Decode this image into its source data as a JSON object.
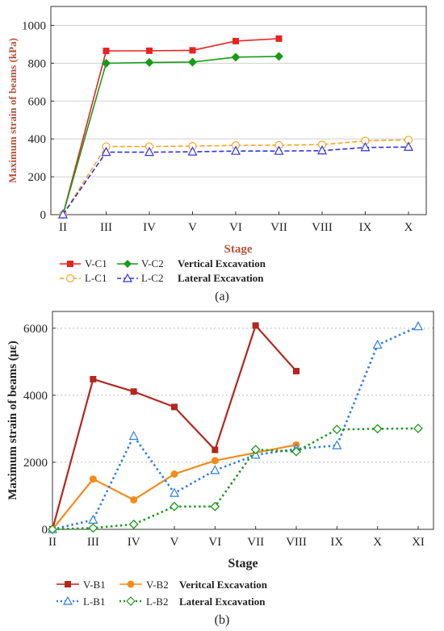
{
  "colors": {
    "red": "#e8231f",
    "green": "#1a9a1a",
    "orange": "#f5a623",
    "blue": "#3333dd",
    "darkred": "#b3261e",
    "orange2": "#f28c1b",
    "lightblue": "#2f7fe0",
    "green2": "#1f9a1f",
    "axis_title": "#b5533a"
  },
  "chart_data": [
    {
      "type": "line",
      "panel_label": "(a)",
      "ylabel": "Maximum strain of beams (kPa)",
      "xlabel": "Stage",
      "categories": [
        "II",
        "III",
        "IV",
        "V",
        "VI",
        "VII",
        "VIII",
        "IX",
        "X"
      ],
      "ylim": [
        0,
        1100
      ],
      "yticks": [
        0,
        200,
        400,
        600,
        800,
        1000
      ],
      "grid": true,
      "series": [
        {
          "name": "V-C1",
          "color": "red",
          "marker": "square-filled",
          "dash": "solid",
          "values": [
            0,
            865,
            866,
            868,
            917,
            930,
            null,
            null,
            null
          ]
        },
        {
          "name": "V-C2",
          "color": "green",
          "marker": "diamond-filled",
          "dash": "solid",
          "values": [
            0,
            800,
            804,
            806,
            832,
            836,
            null,
            null,
            null
          ]
        },
        {
          "name": "L-C1",
          "color": "orange",
          "marker": "circle-open",
          "dash": "dashed",
          "values": [
            0,
            360,
            360,
            362,
            366,
            367,
            370,
            390,
            395
          ]
        },
        {
          "name": "L-C2",
          "color": "blue",
          "marker": "triangle-open",
          "dash": "dashed",
          "values": [
            0,
            330,
            330,
            332,
            336,
            336,
            338,
            355,
            357
          ]
        }
      ],
      "legend_groups": [
        "Vertical Excavation",
        "Lateral Excavation"
      ]
    },
    {
      "type": "line",
      "panel_label": "(b)",
      "ylabel": "Maximum strain of beams (με)",
      "xlabel": "Stage",
      "categories": [
        "II",
        "III",
        "IV",
        "V",
        "VI",
        "VII",
        "VIII",
        "IX",
        "X",
        "XI"
      ],
      "ylim": [
        0,
        6500
      ],
      "yticks": [
        0,
        2000,
        4000,
        6000
      ],
      "grid": true,
      "series": [
        {
          "name": "V-B1",
          "color": "darkred",
          "marker": "square-filled",
          "dash": "solid",
          "values": [
            0,
            4480,
            4110,
            3650,
            2370,
            6080,
            4720,
            null,
            null,
            null
          ]
        },
        {
          "name": "V-B2",
          "color": "orange2",
          "marker": "circle-filled",
          "dash": "solid",
          "values": [
            0,
            1500,
            880,
            1650,
            2050,
            null,
            2520,
            null,
            null,
            null
          ]
        },
        {
          "name": "L-B1",
          "color": "lightblue",
          "marker": "triangle-open",
          "dash": "dotted",
          "values": [
            0,
            280,
            2780,
            1080,
            1760,
            2220,
            2400,
            2500,
            5500,
            6050
          ]
        },
        {
          "name": "L-B2",
          "color": "green2",
          "marker": "diamond-open",
          "dash": "dotted",
          "values": [
            0,
            40,
            150,
            680,
            680,
            2380,
            2320,
            2980,
            3000,
            3010
          ]
        }
      ],
      "legend_groups": [
        "Veritcal Excavation",
        "Lateral Excavation"
      ]
    }
  ]
}
